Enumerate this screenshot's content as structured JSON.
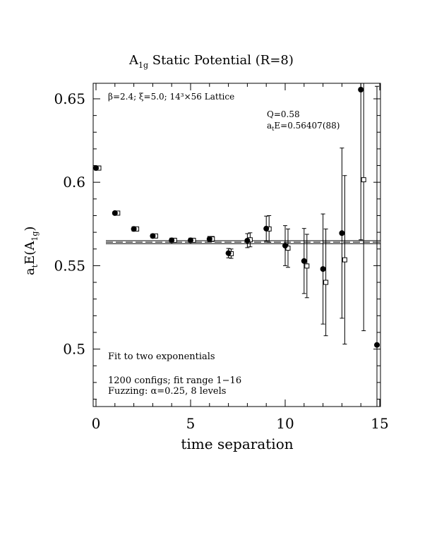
{
  "chart_data": {
    "type": "scatter",
    "title_main": "A",
    "title_sub": "1g",
    "title_rest": " Static Potential (R=8)",
    "xlabel": "time separation",
    "ylabel_parts": {
      "a": "a",
      "t": "t",
      "E": "E(A",
      "sub": "1g",
      "close": ")"
    },
    "xlim": [
      0,
      15
    ],
    "ylim": [
      0.46,
      0.66
    ],
    "x_ticks": [
      0,
      5,
      10,
      15
    ],
    "y_ticks": [
      0.5,
      0.55,
      0.6,
      0.65
    ],
    "x_tick_labels": [
      "0",
      "5",
      "10",
      "15"
    ],
    "y_tick_labels": [
      "0.5",
      "0.55",
      "0.6",
      "0.65"
    ],
    "annotations": {
      "lattice": "β=2.4; ξ=5.0; 14³×56 Lattice",
      "q": "Q=0.58",
      "energy_prefix": "a",
      "energy_sub": "t",
      "energy_rest": "E=0.56407(88)",
      "fit": "Fit to two exponentials",
      "configs": "1200 configs; fit range 1−16",
      "fuzzing": "Fuzzing: α=0.25, 8 levels"
    },
    "fit_band": {
      "center": 0.56407,
      "error": 0.00088
    },
    "series": [
      {
        "marker": "filled-circle",
        "points": [
          {
            "x": 0,
            "y": 0.6085,
            "err": 0.0012
          },
          {
            "x": 1,
            "y": 0.5815,
            "err": 0.001
          },
          {
            "x": 2,
            "y": 0.572,
            "err": 0.0013
          },
          {
            "x": 3,
            "y": 0.5678,
            "err": 0.0012
          },
          {
            "x": 4,
            "y": 0.5652,
            "err": 0.0013
          },
          {
            "x": 5,
            "y": 0.5652,
            "err": 0.0013
          },
          {
            "x": 6,
            "y": 0.566,
            "err": 0.0015
          },
          {
            "x": 7,
            "y": 0.5575,
            "err": 0.0028
          },
          {
            "x": 8,
            "y": 0.565,
            "err": 0.0042
          },
          {
            "x": 9,
            "y": 0.5722,
            "err": 0.0075
          },
          {
            "x": 10,
            "y": 0.562,
            "err": 0.012
          },
          {
            "x": 11,
            "y": 0.5528,
            "err": 0.0195
          },
          {
            "x": 12,
            "y": 0.548,
            "err": 0.033
          },
          {
            "x": 13,
            "y": 0.5695,
            "err": 0.051
          },
          {
            "x": 14,
            "y": 0.6555,
            "err": 0.09
          },
          {
            "x": 15,
            "y": 0.5025,
            "err": 0.155
          }
        ]
      },
      {
        "marker": "open-square",
        "points": [
          {
            "x": 0,
            "y": 0.6085,
            "err": 0.0012
          },
          {
            "x": 1,
            "y": 0.5815,
            "err": 0.001
          },
          {
            "x": 2,
            "y": 0.572,
            "err": 0.0012
          },
          {
            "x": 3,
            "y": 0.5678,
            "err": 0.0012
          },
          {
            "x": 4,
            "y": 0.5652,
            "err": 0.0012
          },
          {
            "x": 5,
            "y": 0.5652,
            "err": 0.0012
          },
          {
            "x": 6,
            "y": 0.566,
            "err": 0.0015
          },
          {
            "x": 7,
            "y": 0.5572,
            "err": 0.0028
          },
          {
            "x": 8,
            "y": 0.5655,
            "err": 0.0042
          },
          {
            "x": 9,
            "y": 0.572,
            "err": 0.008
          },
          {
            "x": 10,
            "y": 0.5605,
            "err": 0.0115
          },
          {
            "x": 11,
            "y": 0.5498,
            "err": 0.019
          },
          {
            "x": 12,
            "y": 0.54,
            "err": 0.032
          },
          {
            "x": 13,
            "y": 0.5535,
            "err": 0.0505
          },
          {
            "x": 14,
            "y": 0.6015,
            "err": 0.0905
          }
        ]
      }
    ]
  }
}
